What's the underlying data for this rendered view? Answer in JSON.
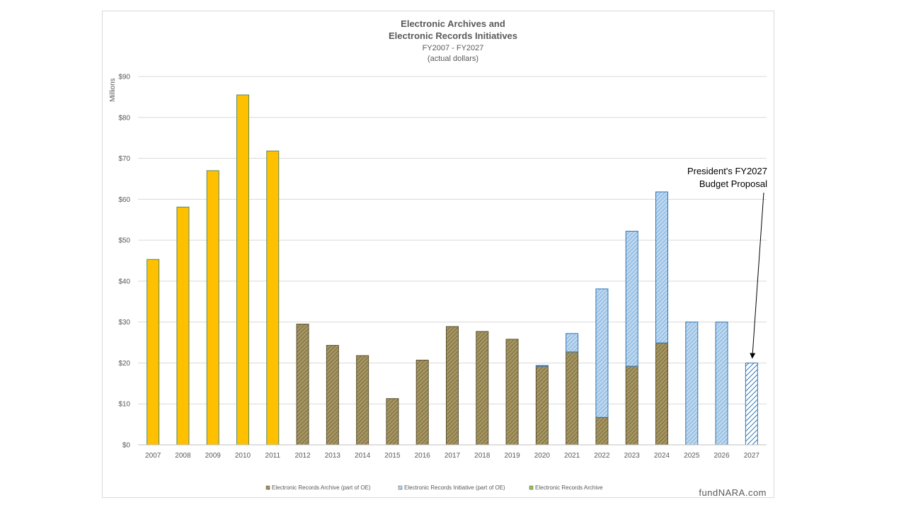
{
  "chart_data": {
    "type": "bar",
    "stacked": true,
    "title": "Electronic Archives and\nElectronic Records Initiatives",
    "subtitle": "FY2007 - FY2027\n(actual dollars)",
    "ylabel": "Millions",
    "xlabel": "",
    "ylim": [
      0,
      90
    ],
    "yticks": [
      0,
      10,
      20,
      30,
      40,
      50,
      60,
      70,
      80,
      90
    ],
    "ytick_labels": [
      "$0",
      "$10",
      "$20",
      "$30",
      "$40",
      "$50",
      "$60",
      "$70",
      "$80",
      "$90"
    ],
    "grid": true,
    "legend_position": "bottom",
    "categories": [
      "2007",
      "2008",
      "2009",
      "2010",
      "2011",
      "2012",
      "2013",
      "2014",
      "2015",
      "2016",
      "2017",
      "2018",
      "2019",
      "2020",
      "2021",
      "2022",
      "2023",
      "2024",
      "2025",
      "2026",
      "2027"
    ],
    "series": [
      {
        "name": "Electronic Records Archive",
        "color": "#ffc000",
        "values": [
          45.3,
          58.1,
          67.0,
          85.5,
          71.8,
          0,
          0,
          0,
          0,
          0,
          0,
          0,
          0,
          0,
          0,
          0,
          0,
          0,
          0,
          0,
          0
        ]
      },
      {
        "name": "Electronic Records Archive (part of OE)",
        "color": "#a69560",
        "values": [
          0,
          0,
          0,
          0,
          0,
          29.5,
          24.3,
          21.8,
          11.3,
          20.7,
          28.9,
          27.7,
          25.8,
          19.2,
          22.7,
          6.7,
          19.2,
          24.9,
          0,
          0,
          0
        ]
      },
      {
        "name": "Electronic Records Initiative (part of OE)",
        "color": "#9dc3e6",
        "values": [
          0,
          0,
          0,
          0,
          0,
          0,
          0,
          0,
          0,
          0,
          0,
          0,
          0,
          0.2,
          4.5,
          31.4,
          33.0,
          36.9,
          30.0,
          30.0,
          20.0
        ]
      }
    ],
    "legend_order": [
      "Electronic Records Archive (part of OE)",
      "Electronic Records Initiative (part of OE)",
      "Electronic Records Archive"
    ],
    "annotation": {
      "text": "President's FY2027\nBudget Proposal",
      "target_category": "2027"
    }
  },
  "watermark": "fundNARA.com"
}
